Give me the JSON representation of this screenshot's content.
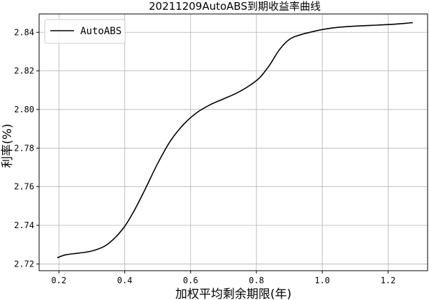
{
  "chart_data": {
    "type": "line",
    "title": "20211209AutoABS到期收益率曲线",
    "xlabel": "加权平均剩余期限(年)",
    "ylabel": "利率(%)",
    "xlim": [
      0.14,
      1.32
    ],
    "ylim": [
      2.7165,
      2.8495
    ],
    "xticks": [
      0.2,
      0.4,
      0.6,
      0.8,
      1.0,
      1.2
    ],
    "xtick_labels": [
      "0.2",
      "0.4",
      "0.6",
      "0.8",
      "1.0",
      "1.2"
    ],
    "yticks": [
      2.72,
      2.74,
      2.76,
      2.78,
      2.8,
      2.82,
      2.84
    ],
    "ytick_labels": [
      "2.72",
      "2.74",
      "2.76",
      "2.78",
      "2.80",
      "2.82",
      "2.84"
    ],
    "grid": true,
    "legend_position": "top-left",
    "series": [
      {
        "name": "AutoABS",
        "color": "#000000",
        "x": [
          0.195,
          0.22,
          0.26,
          0.3,
          0.34,
          0.37,
          0.4,
          0.43,
          0.46,
          0.5,
          0.54,
          0.58,
          0.62,
          0.66,
          0.7,
          0.74,
          0.78,
          0.81,
          0.84,
          0.87,
          0.9,
          0.93,
          0.97,
          1.01,
          1.05,
          1.1,
          1.15,
          1.2,
          1.25,
          1.275
        ],
        "y": [
          2.7232,
          2.7247,
          2.7256,
          2.7267,
          2.7293,
          2.7335,
          2.7395,
          2.748,
          2.758,
          2.772,
          2.784,
          2.7925,
          2.7985,
          2.8025,
          2.8055,
          2.8085,
          2.8125,
          2.8165,
          2.823,
          2.831,
          2.8363,
          2.8385,
          2.8403,
          2.8417,
          2.8426,
          2.8432,
          2.8436,
          2.844,
          2.8446,
          2.845
        ]
      }
    ]
  }
}
